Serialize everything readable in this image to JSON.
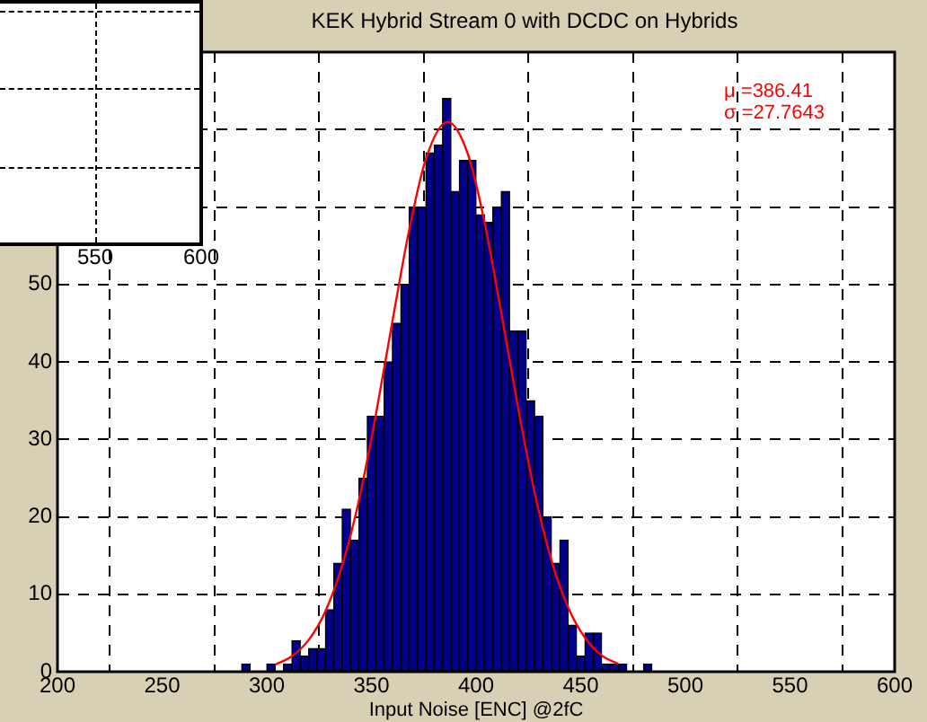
{
  "chart_data": [
    {
      "type": "histogram",
      "title": "KEK Hybrid Stream 0 with DCDC on Hybrids",
      "xlabel": "Input Noise [ENC] @2fC",
      "bins": [
        200,
        204,
        208,
        212,
        216,
        220,
        224,
        228,
        232,
        236,
        240,
        244,
        248,
        252,
        256,
        260,
        264,
        268,
        272,
        276,
        280,
        284,
        288,
        292,
        296,
        300,
        304,
        308,
        312,
        316,
        320,
        324,
        328,
        332,
        336,
        340,
        344,
        348,
        352,
        356,
        360,
        364,
        368,
        372,
        376,
        380,
        384,
        388,
        392,
        396,
        400,
        404,
        408,
        412,
        416,
        420,
        424,
        428,
        432,
        436,
        440,
        444,
        448,
        452,
        456,
        460,
        464,
        468,
        472,
        476,
        480,
        484,
        488,
        492,
        496,
        500,
        504,
        508,
        512,
        516,
        520,
        524,
        528,
        532,
        536,
        540,
        544,
        548,
        552,
        556,
        560,
        564,
        568,
        572,
        576,
        580,
        584,
        588,
        592,
        596,
        600
      ],
      "series": [
        {
          "type": "histogram",
          "color": "#00008b",
          "values": [
            0,
            0,
            0,
            0,
            0,
            0,
            0,
            0,
            0,
            0,
            0,
            0,
            0,
            0,
            0,
            0,
            0,
            0,
            0,
            0,
            0,
            0,
            1,
            0,
            0,
            1,
            0,
            1,
            4,
            2,
            3,
            3,
            8,
            14,
            21,
            17,
            25,
            33,
            33,
            40,
            45,
            50,
            60,
            60,
            67,
            68,
            74,
            62,
            66,
            66,
            59,
            58,
            60,
            62,
            44,
            44,
            35,
            33,
            20,
            14,
            17,
            6,
            2,
            5,
            5,
            1,
            1,
            1,
            0,
            0,
            1,
            0,
            0,
            0,
            0,
            0,
            0,
            0,
            0,
            0,
            0,
            0,
            0,
            0,
            0,
            0,
            0,
            0,
            0,
            0,
            0,
            0,
            0,
            0,
            0,
            0,
            0,
            0,
            0,
            0
          ]
        },
        {
          "type": "line",
          "color": "#ff0000",
          "x": [
            304,
            312,
            320,
            328,
            336,
            344,
            352,
            360,
            368,
            376,
            386.41,
            396,
            404,
            412,
            420,
            428,
            436,
            444,
            452,
            460,
            468
          ],
          "values": [
            0.9,
            2.0,
            4.1,
            7.8,
            13.7,
            22.1,
            33.0,
            45.2,
            57.0,
            66.2,
            71.0,
            66.9,
            58.1,
            46.4,
            34.2,
            23.1,
            14.4,
            8.3,
            4.4,
            2.1,
            1.0
          ]
        }
      ],
      "annotations": [
        "μ =386.41",
        "σ =27.7643"
      ],
      "xlim": [
        200,
        600
      ],
      "xticks": [
        200,
        250,
        300,
        350,
        400,
        450,
        500,
        550,
        600
      ],
      "ylim": [
        0,
        80
      ],
      "yticks": [
        0,
        10,
        20,
        30,
        40,
        50,
        {
          "value": 60,
          "label": null
        },
        {
          "value": 70,
          "label": null
        },
        {
          "value": 80,
          "label": null
        }
      ],
      "grid": true
    },
    {
      "type": "other",
      "annotations": [
        "550",
        "600"
      ]
    }
  ]
}
